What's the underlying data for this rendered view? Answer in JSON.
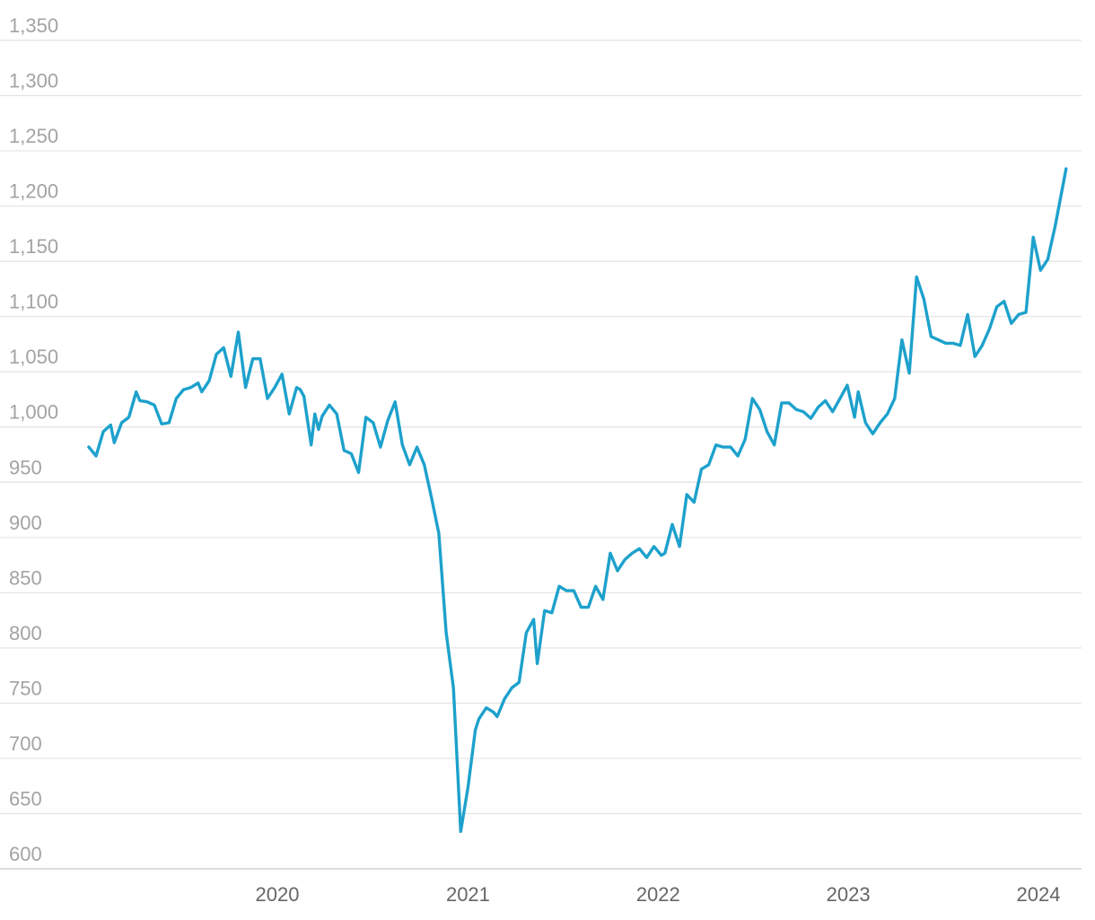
{
  "chart_data": {
    "type": "line",
    "title": "",
    "xlabel": "",
    "ylabel": "",
    "x_range": [
      "2019-01-04",
      "2024-02-23"
    ],
    "ylim": [
      590,
      1360
    ],
    "grid": "horizontal",
    "line_color": "#1da1cc",
    "grid_color": "#e3e3e3",
    "y_ticks": [
      {
        "value": 600,
        "label": "600"
      },
      {
        "value": 650,
        "label": "650"
      },
      {
        "value": 700,
        "label": "700"
      },
      {
        "value": 750,
        "label": "750"
      },
      {
        "value": 800,
        "label": "800"
      },
      {
        "value": 850,
        "label": "850"
      },
      {
        "value": 900,
        "label": "900"
      },
      {
        "value": 950,
        "label": "950"
      },
      {
        "value": 1000,
        "label": "1,000"
      },
      {
        "value": 1050,
        "label": "1,050"
      },
      {
        "value": 1100,
        "label": "1,100"
      },
      {
        "value": 1150,
        "label": "1,150"
      },
      {
        "value": 1200,
        "label": "1,200"
      },
      {
        "value": 1250,
        "label": "1,250"
      },
      {
        "value": 1300,
        "label": "1,300"
      },
      {
        "value": 1350,
        "label": "1,350"
      }
    ],
    "x_ticks": [
      {
        "date": "2020-01-01",
        "label": "2020"
      },
      {
        "date": "2021-01-01",
        "label": "2021"
      },
      {
        "date": "2022-01-01",
        "label": "2022"
      },
      {
        "date": "2023-01-01",
        "label": "2023"
      },
      {
        "date": "2024-01-01",
        "label": "2024"
      }
    ],
    "series": [
      {
        "points": [
          [
            "2019-01-04",
            968
          ],
          [
            "2019-01-18",
            960
          ],
          [
            "2019-02-01",
            982
          ],
          [
            "2019-02-15",
            988
          ],
          [
            "2019-02-22",
            972
          ],
          [
            "2019-03-08",
            990
          ],
          [
            "2019-03-22",
            995
          ],
          [
            "2019-04-05",
            1018
          ],
          [
            "2019-04-12",
            1010
          ],
          [
            "2019-04-26",
            1009
          ],
          [
            "2019-05-10",
            1006
          ],
          [
            "2019-05-24",
            989
          ],
          [
            "2019-06-07",
            990
          ],
          [
            "2019-06-21",
            1012
          ],
          [
            "2019-07-05",
            1020
          ],
          [
            "2019-07-19",
            1022
          ],
          [
            "2019-08-02",
            1026
          ],
          [
            "2019-08-09",
            1018
          ],
          [
            "2019-08-23",
            1028
          ],
          [
            "2019-09-06",
            1052
          ],
          [
            "2019-09-20",
            1058
          ],
          [
            "2019-10-04",
            1032
          ],
          [
            "2019-10-18",
            1072
          ],
          [
            "2019-11-01",
            1022
          ],
          [
            "2019-11-15",
            1048
          ],
          [
            "2019-11-29",
            1048
          ],
          [
            "2019-12-13",
            1012
          ],
          [
            "2019-12-27",
            1022
          ],
          [
            "2020-01-10",
            1034
          ],
          [
            "2020-01-24",
            998
          ],
          [
            "2020-02-07",
            1022
          ],
          [
            "2020-02-14",
            1020
          ],
          [
            "2020-02-21",
            1014
          ],
          [
            "2020-03-06",
            970
          ],
          [
            "2020-03-13",
            998
          ],
          [
            "2020-03-20",
            984
          ],
          [
            "2020-03-27",
            996
          ],
          [
            "2020-04-10",
            1006
          ],
          [
            "2020-04-24",
            998
          ],
          [
            "2020-05-08",
            965
          ],
          [
            "2020-05-22",
            962
          ],
          [
            "2020-06-05",
            945
          ],
          [
            "2020-06-19",
            995
          ],
          [
            "2020-07-03",
            990
          ],
          [
            "2020-07-17",
            968
          ],
          [
            "2020-07-31",
            992
          ],
          [
            "2020-08-14",
            1009
          ],
          [
            "2020-08-28",
            970
          ],
          [
            "2020-09-11",
            952
          ],
          [
            "2020-09-25",
            968
          ],
          [
            "2020-10-09",
            952
          ],
          [
            "2020-10-23",
            922
          ],
          [
            "2020-11-06",
            890
          ],
          [
            "2020-11-20",
            800
          ],
          [
            "2020-12-04",
            750
          ],
          [
            "2020-12-18",
            620
          ],
          [
            "2021-01-01",
            660
          ],
          [
            "2021-01-15",
            712
          ],
          [
            "2021-01-22",
            722
          ],
          [
            "2021-02-05",
            732
          ],
          [
            "2021-02-19",
            728
          ],
          [
            "2021-02-26",
            724
          ],
          [
            "2021-03-12",
            740
          ],
          [
            "2021-03-26",
            750
          ],
          [
            "2021-04-09",
            755
          ],
          [
            "2021-04-23",
            800
          ],
          [
            "2021-05-07",
            812
          ],
          [
            "2021-05-14",
            772
          ],
          [
            "2021-05-28",
            820
          ],
          [
            "2021-06-11",
            818
          ],
          [
            "2021-06-25",
            842
          ],
          [
            "2021-07-09",
            838
          ],
          [
            "2021-07-23",
            838
          ],
          [
            "2021-08-06",
            823
          ],
          [
            "2021-08-20",
            823
          ],
          [
            "2021-09-03",
            842
          ],
          [
            "2021-09-17",
            830
          ],
          [
            "2021-10-01",
            872
          ],
          [
            "2021-10-15",
            856
          ],
          [
            "2021-10-29",
            866
          ],
          [
            "2021-11-12",
            872
          ],
          [
            "2021-11-26",
            876
          ],
          [
            "2021-12-10",
            868
          ],
          [
            "2021-12-24",
            878
          ],
          [
            "2022-01-07",
            870
          ],
          [
            "2022-01-14",
            872
          ],
          [
            "2022-01-28",
            898
          ],
          [
            "2022-02-11",
            878
          ],
          [
            "2022-02-25",
            925
          ],
          [
            "2022-03-11",
            918
          ],
          [
            "2022-03-25",
            948
          ],
          [
            "2022-04-08",
            952
          ],
          [
            "2022-04-22",
            970
          ],
          [
            "2022-05-06",
            968
          ],
          [
            "2022-05-20",
            968
          ],
          [
            "2022-06-03",
            960
          ],
          [
            "2022-06-17",
            975
          ],
          [
            "2022-07-01",
            1012
          ],
          [
            "2022-07-15",
            1002
          ],
          [
            "2022-07-29",
            982
          ],
          [
            "2022-08-12",
            970
          ],
          [
            "2022-08-26",
            1008
          ],
          [
            "2022-09-09",
            1008
          ],
          [
            "2022-09-23",
            1002
          ],
          [
            "2022-10-07",
            1000
          ],
          [
            "2022-10-21",
            994
          ],
          [
            "2022-11-04",
            1004
          ],
          [
            "2022-11-18",
            1010
          ],
          [
            "2022-12-02",
            1000
          ],
          [
            "2022-12-16",
            1012
          ],
          [
            "2022-12-30",
            1024
          ],
          [
            "2023-01-13",
            995
          ],
          [
            "2023-01-20",
            1018
          ],
          [
            "2023-02-03",
            990
          ],
          [
            "2023-02-17",
            980
          ],
          [
            "2023-03-03",
            990
          ],
          [
            "2023-03-17",
            998
          ],
          [
            "2023-03-31",
            1012
          ],
          [
            "2023-04-14",
            1065
          ],
          [
            "2023-04-28",
            1035
          ],
          [
            "2023-05-12",
            1122
          ],
          [
            "2023-05-26",
            1102
          ],
          [
            "2023-06-09",
            1068
          ],
          [
            "2023-06-23",
            1065
          ],
          [
            "2023-07-07",
            1062
          ],
          [
            "2023-07-21",
            1062
          ],
          [
            "2023-08-04",
            1060
          ],
          [
            "2023-08-18",
            1088
          ],
          [
            "2023-09-01",
            1050
          ],
          [
            "2023-09-15",
            1060
          ],
          [
            "2023-09-29",
            1075
          ],
          [
            "2023-10-13",
            1095
          ],
          [
            "2023-10-27",
            1100
          ],
          [
            "2023-11-10",
            1080
          ],
          [
            "2023-11-24",
            1088
          ],
          [
            "2023-12-08",
            1090
          ],
          [
            "2023-12-22",
            1158
          ],
          [
            "2024-01-05",
            1128
          ],
          [
            "2024-01-19",
            1138
          ],
          [
            "2024-02-02",
            1168
          ],
          [
            "2024-02-23",
            1220
          ]
        ]
      }
    ]
  }
}
